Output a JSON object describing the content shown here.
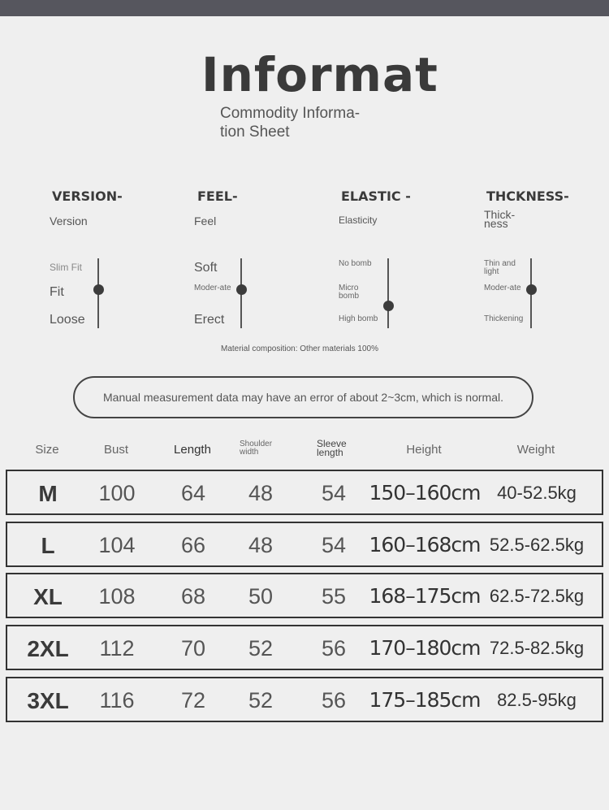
{
  "title": "Informat",
  "subtitle": "Commodity Informa-tion Sheet",
  "attributes": [
    {
      "heading": "VERSION-",
      "label": "Version",
      "options": [
        "Slim Fit",
        "Fit",
        "Loose"
      ],
      "selected": "Fit"
    },
    {
      "heading": "FEEL-",
      "label": "Feel",
      "options": [
        "Soft",
        "Moder-ate",
        "Erect"
      ],
      "selected": "Moder-ate"
    },
    {
      "heading": "ELASTIC -",
      "label": "Elasticity",
      "options": [
        "No bomb",
        "Micro bomb",
        "High bomb"
      ],
      "selected": "between Micro bomb and High bomb"
    },
    {
      "heading": "THCKNESS-",
      "label": "Thick-ness",
      "options": [
        "Thin and light",
        "Moder-ate",
        "Thickening"
      ],
      "selected": "Moder-ate"
    }
  ],
  "material": "Material composition: Other materials 100%",
  "note": "Manual measurement data may have an error of about 2~3cm, which is normal.",
  "table": {
    "headers": [
      "Size",
      "Bust",
      "Length",
      "Shoulder width",
      "Sleeve length",
      "Height",
      "Weight"
    ],
    "rows": [
      [
        "M",
        "100",
        "64",
        "48",
        "54",
        "150–160cm",
        "40-52.5kg"
      ],
      [
        "L",
        "104",
        "66",
        "48",
        "54",
        "160–168cm",
        "52.5-62.5kg"
      ],
      [
        "XL",
        "108",
        "68",
        "50",
        "55",
        "168–175cm",
        "62.5-72.5kg"
      ],
      [
        "2XL",
        "112",
        "70",
        "52",
        "56",
        "170–180cm",
        "72.5-82.5kg"
      ],
      [
        "3XL",
        "116",
        "72",
        "52",
        "56",
        "175–185cm",
        "82.5-95kg"
      ]
    ]
  }
}
